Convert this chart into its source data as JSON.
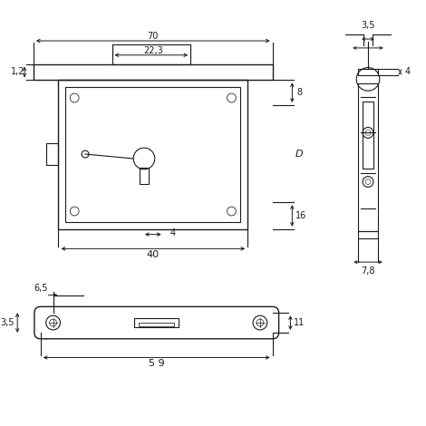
{
  "bg_color": "#ffffff",
  "line_color": "#1a1a1a",
  "dim_color": "#1a1a1a",
  "fig_width": 4.7,
  "fig_height": 4.7,
  "dpi": 100
}
